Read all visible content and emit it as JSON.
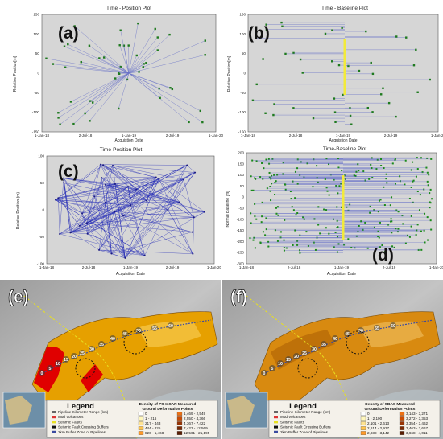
{
  "panels": {
    "a": {
      "letter": "(a)",
      "title": "Time - Position Plot",
      "ylabel": "Relative Position[m]",
      "xlabel": "Acquistion Date",
      "yticks": [
        "150",
        "100",
        "50",
        "0",
        "-50",
        "-100",
        "-150"
      ],
      "xticks": [
        "1-Jan-18",
        "2-Jul-18",
        "1-Jan-19",
        "2-Jul-19",
        "1-Jan-20"
      ]
    },
    "b": {
      "letter": "(b)",
      "title": "Time - Baseline Plot",
      "ylabel": "Relative Position[m]",
      "xlabel": "Acquistion Date",
      "yticks": [
        "150",
        "100",
        "50",
        "0",
        "-50",
        "-100",
        "-150"
      ],
      "xticks": [
        "1-Jan-18",
        "2-Jul-18",
        "1-Jan-19",
        "2-Jul-19",
        "1-Jan-20"
      ]
    },
    "c": {
      "letter": "(c)",
      "title": "Time-Position Plot",
      "ylabel": "Relative Position (m)",
      "xlabel": "Acquisition Date",
      "yticks": [
        "100",
        "50",
        "0",
        "-50",
        "-100"
      ],
      "xticks": [
        "1-Jan-18",
        "2-Jul-18",
        "1-Jan-19",
        "2-Jul-19",
        "1-Jan-20"
      ]
    },
    "d": {
      "letter": "(d)",
      "title": "Time-Baseline Plot",
      "ylabel": "Normal Baseline [m]",
      "xlabel": "Acquisition Date",
      "yticks": [
        "200",
        "150",
        "100",
        "50",
        "0",
        "-50",
        "-100",
        "-150",
        "-200",
        "-250",
        "-300"
      ],
      "xticks": [
        "1-Jan-18",
        "2-Jul-18",
        "1-Jan-19",
        "2-Jul-19",
        "1-Jan-20"
      ]
    }
  },
  "maps": {
    "e": {
      "letter": "(e)",
      "legend_title": "Legend",
      "legend_items": [
        "Pipeline Kilometer Range (km)",
        "Mud Volcanoes",
        "Seismic Faults",
        "Seismic Fault Crossing Buffers",
        "2km Buffer Zone of Pipelines"
      ],
      "density_title": "Density of PS-InSAR Measured",
      "density_subtitle": "Ground Deformation Points",
      "classes": [
        "0",
        "1 - 216",
        "217 - 443",
        "444 - 825",
        "826 - 1,468",
        "1,469 - 2,549",
        "2,550 - 4,366",
        "4,367 - 7,422",
        "7,423 - 12,569",
        "12,561 - 21,195"
      ],
      "colors": [
        "#ffffff",
        "#fff7bc",
        "#fee391",
        "#fec44f",
        "#fe9929",
        "#ec7014",
        "#cc4c02",
        "#993404",
        "#7a2b06",
        "#5a1f04"
      ]
    },
    "f": {
      "letter": "(f)",
      "legend_title": "Legend",
      "legend_items": [
        "Pipeline Kilometer Range (km)",
        "Mud Volcanoes",
        "Seismic Faults",
        "Seismic Fault Crossing Buffers",
        "2km Buffer Zone of Pipelines"
      ],
      "density_title": "Density of SBAS Measured",
      "density_subtitle": "Ground Deformation Points",
      "classes": [
        "0",
        "1 - 2,100",
        "2,101 - 2,613",
        "2,614 - 2,937",
        "2,938 - 3,142",
        "3,143 - 3,271",
        "3,272 - 3,353",
        "3,354 - 3,462",
        "3,463 - 3,667",
        "3,668 - 4,011"
      ],
      "colors": [
        "#ffffff",
        "#fff7bc",
        "#fee391",
        "#fec44f",
        "#fe9929",
        "#ec7014",
        "#cc4c02",
        "#993404",
        "#7a2b06",
        "#5a1f04"
      ]
    },
    "km_labels": [
      "0",
      "5",
      "10",
      "15",
      "20",
      "25",
      "30",
      "35",
      "40",
      "45",
      "50",
      "55",
      "60"
    ]
  }
}
